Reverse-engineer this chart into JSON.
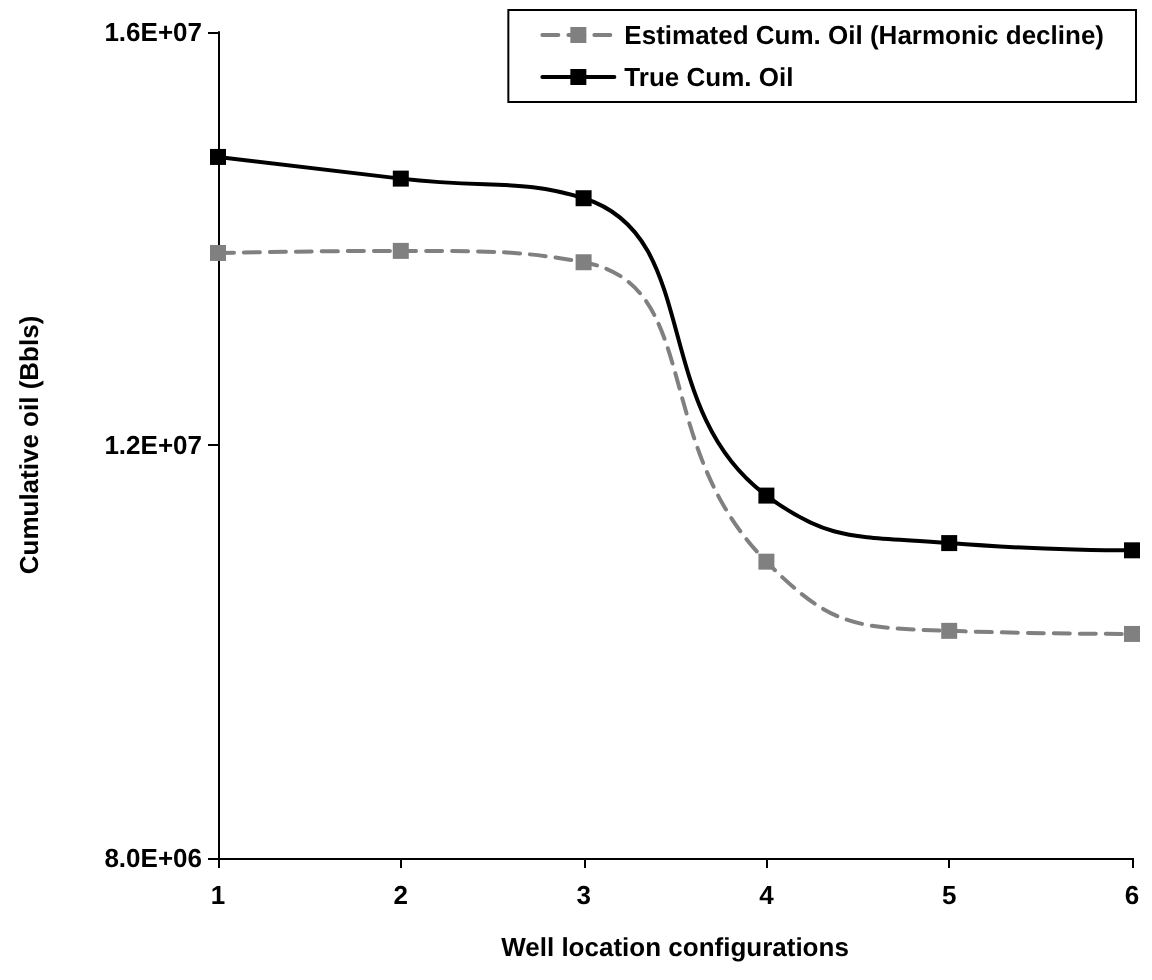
{
  "chart_data": {
    "type": "line",
    "xlabel": "Well location configurations",
    "ylabel": "Cumulative oil (Bbls)",
    "x": [
      1,
      2,
      3,
      4,
      5,
      6
    ],
    "xlim": [
      1,
      6
    ],
    "xticks": [
      1,
      2,
      3,
      4,
      5,
      6
    ],
    "ylim": [
      8000000,
      16000000
    ],
    "yticks": [
      {
        "value": 8000000,
        "label": "8.0E+06"
      },
      {
        "value": 12000000,
        "label": "1.2E+07"
      },
      {
        "value": 16000000,
        "label": "1.6E+07"
      }
    ],
    "series": [
      {
        "name": "Estimated Cum. Oil (Harmonic decline)",
        "color": "#808080",
        "line_style": "dashed",
        "values": [
          13860000,
          13880000,
          13770000,
          10870000,
          10200000,
          10170000
        ]
      },
      {
        "name": "True Cum. Oil",
        "color": "#000000",
        "line_style": "solid",
        "values": [
          14790000,
          14580000,
          14390000,
          11510000,
          11050000,
          10980000
        ]
      }
    ],
    "marker": "square",
    "grid": false,
    "legend": "top right"
  }
}
